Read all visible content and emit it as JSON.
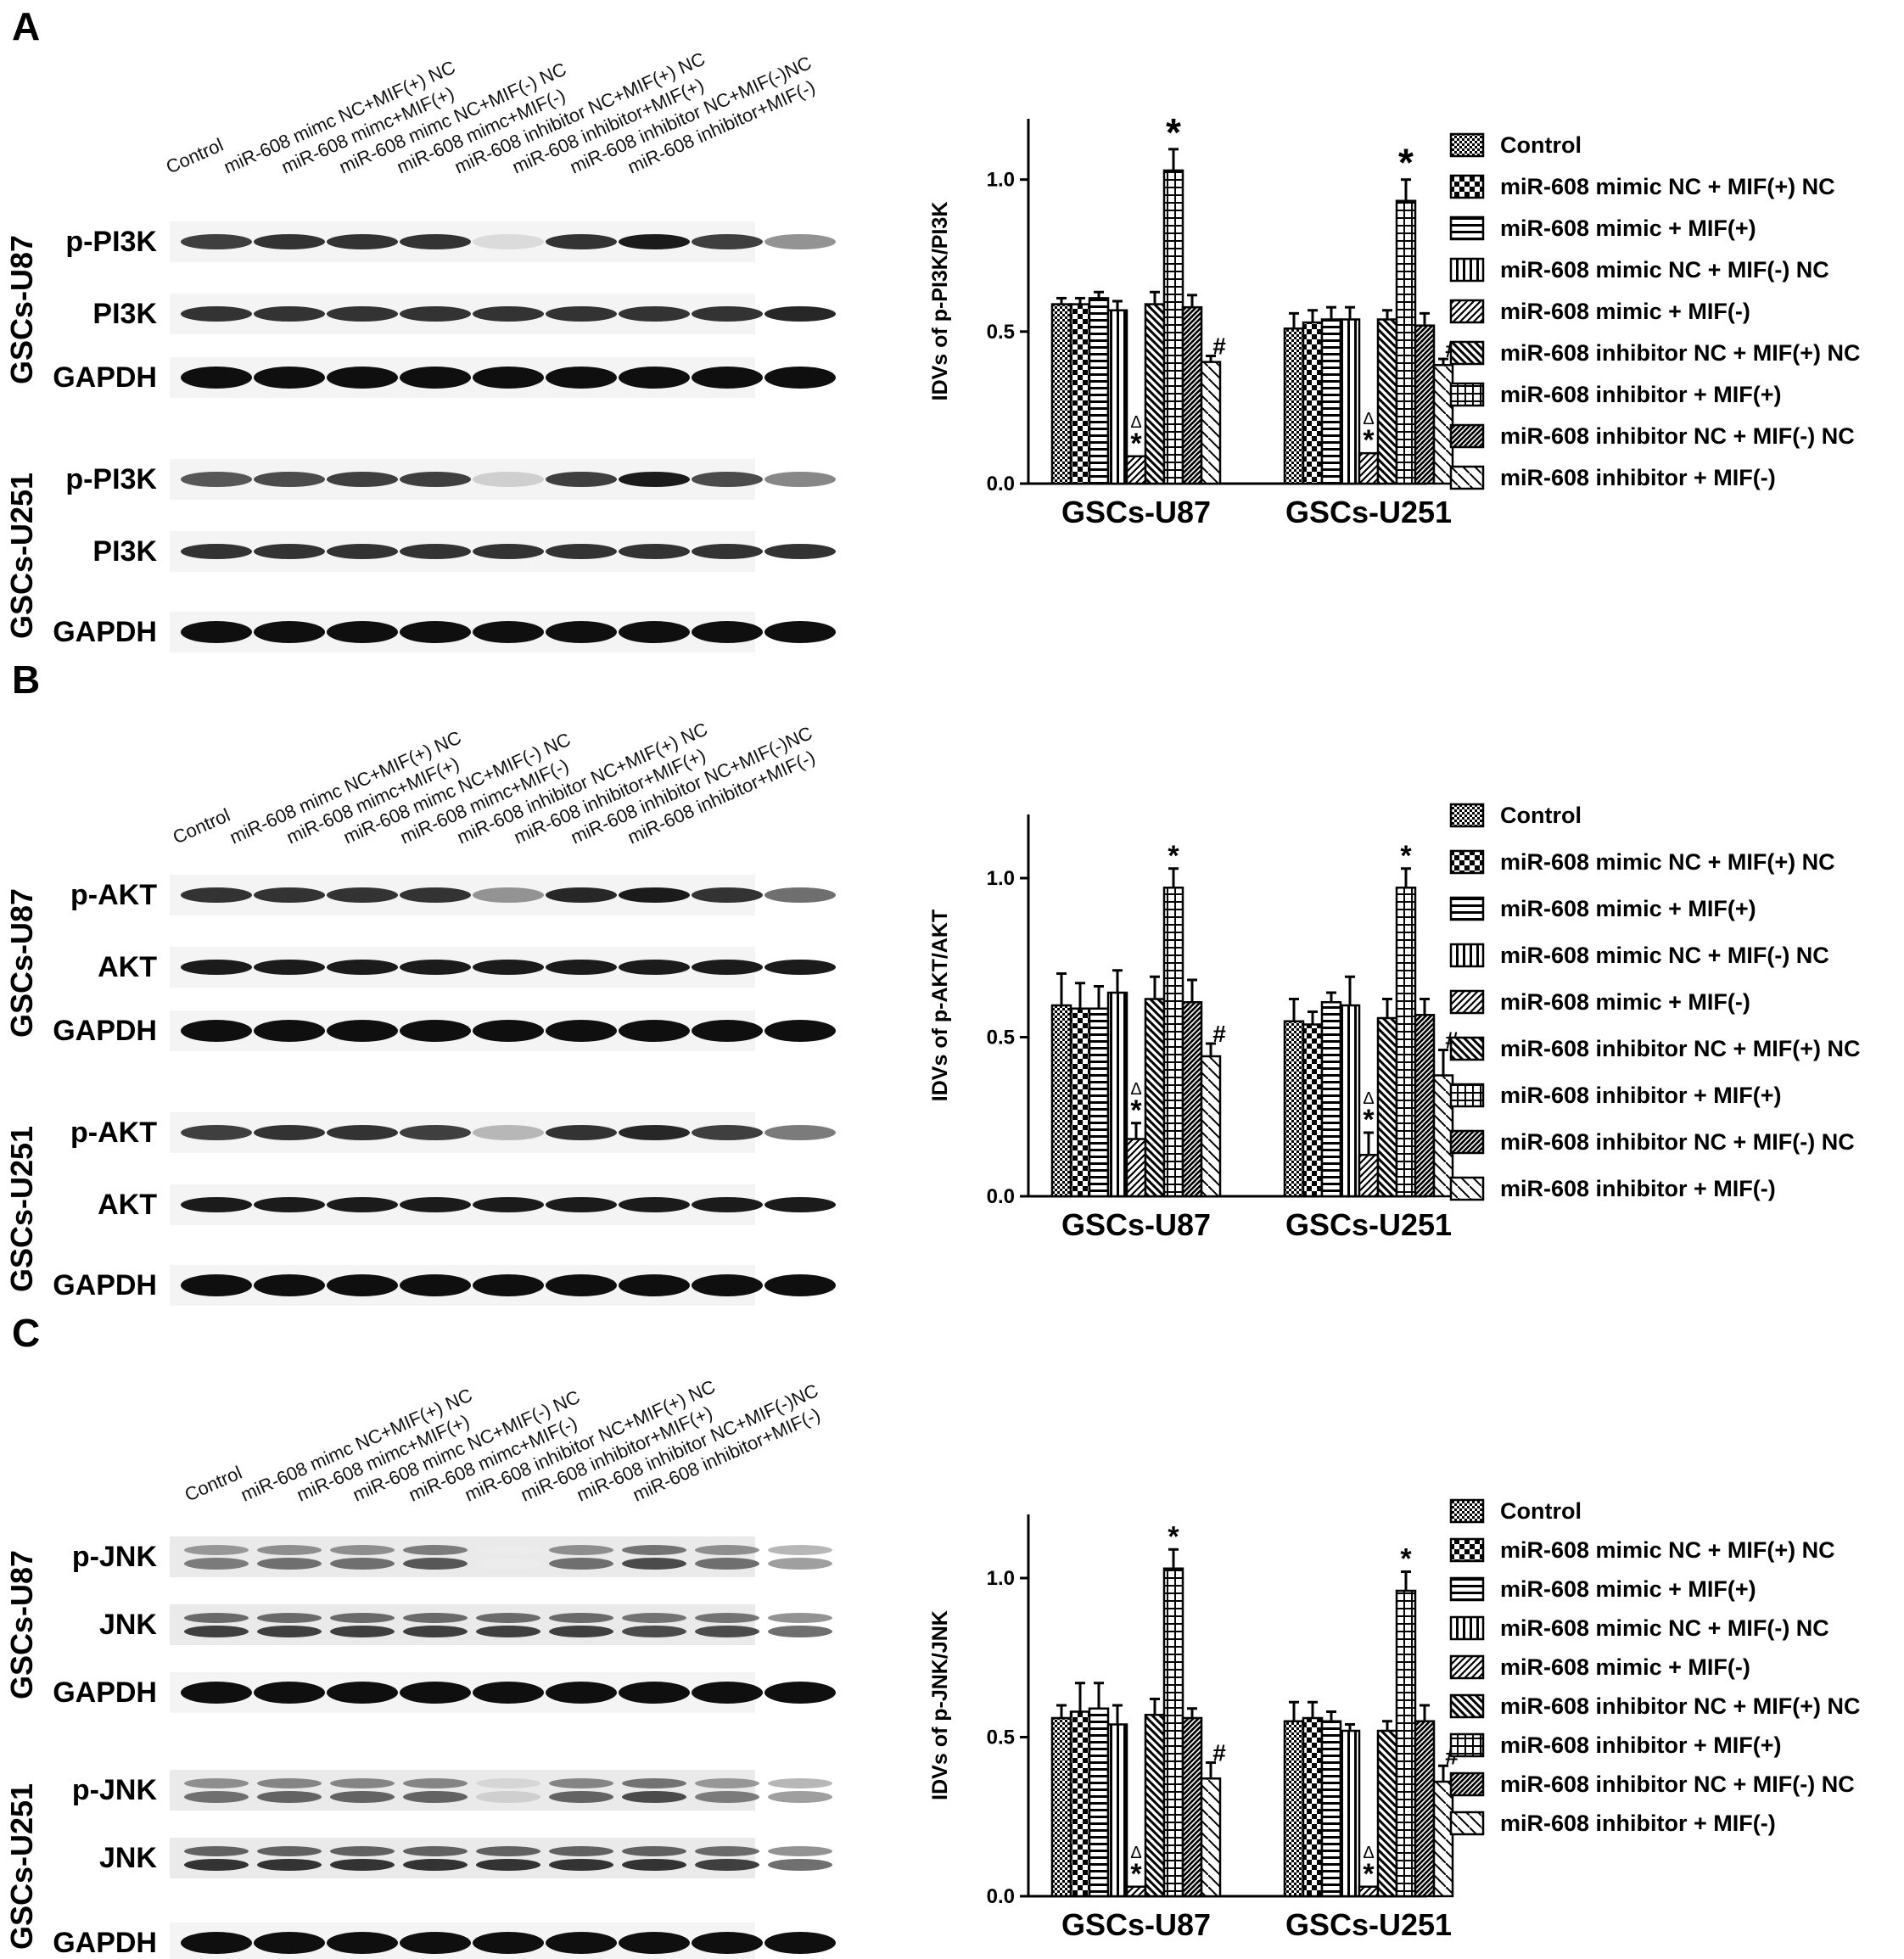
{
  "lane_labels": [
    "Control",
    "miR-608 mimc NC+MIF(+) NC",
    "miR-608 mimc+MIF(+)",
    "miR-608 mimc NC+MIF(-) NC",
    "miR-608 mimc+MIF(-)",
    "miR-608 inhibitor NC+MIF(+) NC",
    "miR-608 inhibitor+MIF(+)",
    "miR-608 inhibitor NC+MIF(-)NC",
    "miR-608 inhibitor+MIF(-)"
  ],
  "legend_labels": [
    "Control",
    "miR-608 mimic NC + MIF(+) NC",
    "miR-608 mimic + MIF(+)",
    "miR-608 mimic NC + MIF(-) NC",
    "miR-608 mimic + MIF(-)",
    "miR-608 inhibitor NC + MIF(+) NC",
    "miR-608 inhibitor + MIF(+)",
    "miR-608 inhibitor NC + MIF(-) NC",
    "miR-608 inhibitor + MIF(-)"
  ],
  "cell_groups": [
    "GSCs-U87",
    "GSCs-U251"
  ],
  "panels": [
    {
      "letter": "A",
      "rows_u87": [
        "p-PI3K",
        "PI3K",
        "GAPDH"
      ],
      "rows_u251": [
        "p-PI3K",
        "PI3K",
        "GAPDH"
      ]
    },
    {
      "letter": "B",
      "rows_u87": [
        "p-AKT",
        "AKT",
        "GAPDH"
      ],
      "rows_u251": [
        "p-AKT",
        "AKT",
        "GAPDH"
      ]
    },
    {
      "letter": "C",
      "rows_u87": [
        "p-JNK",
        "JNK",
        "GAPDH"
      ],
      "rows_u251": [
        "p-JNK",
        "JNK",
        "GAPDH"
      ]
    }
  ],
  "band_intensity": {
    "A": {
      "u87": [
        [
          0.8,
          0.85,
          0.85,
          0.85,
          0.15,
          0.85,
          0.95,
          0.8,
          0.45
        ],
        [
          0.85,
          0.85,
          0.85,
          0.85,
          0.85,
          0.85,
          0.85,
          0.85,
          0.9
        ],
        [
          1,
          1,
          1,
          1,
          1,
          1,
          1,
          1,
          1
        ]
      ],
      "u251": [
        [
          0.7,
          0.75,
          0.8,
          0.8,
          0.2,
          0.8,
          0.95,
          0.75,
          0.5
        ],
        [
          0.85,
          0.85,
          0.85,
          0.85,
          0.85,
          0.85,
          0.85,
          0.85,
          0.85
        ],
        [
          1,
          1,
          1,
          1,
          1,
          1,
          1,
          1,
          1
        ]
      ]
    },
    "B": {
      "u87": [
        [
          0.85,
          0.85,
          0.85,
          0.85,
          0.45,
          0.9,
          0.95,
          0.85,
          0.6
        ],
        [
          0.95,
          0.95,
          0.95,
          0.95,
          0.95,
          0.95,
          0.95,
          0.95,
          0.95
        ],
        [
          1,
          1,
          1,
          1,
          1,
          1,
          1,
          1,
          1
        ]
      ],
      "u251": [
        [
          0.8,
          0.85,
          0.85,
          0.8,
          0.3,
          0.85,
          0.9,
          0.8,
          0.55
        ],
        [
          0.95,
          0.95,
          0.95,
          0.95,
          0.95,
          0.95,
          0.95,
          0.95,
          0.95
        ],
        [
          1,
          1,
          1,
          1,
          1,
          1,
          1,
          1,
          1
        ]
      ]
    },
    "C": {
      "u87": [
        [
          0.55,
          0.6,
          0.6,
          0.7,
          0.08,
          0.6,
          0.75,
          0.6,
          0.4
        ],
        [
          0.8,
          0.8,
          0.8,
          0.8,
          0.8,
          0.8,
          0.75,
          0.75,
          0.6
        ],
        [
          1,
          1,
          1,
          1,
          1,
          1,
          1,
          1,
          1
        ]
      ],
      "u251": [
        [
          0.6,
          0.65,
          0.65,
          0.65,
          0.2,
          0.65,
          0.75,
          0.55,
          0.4
        ],
        [
          0.85,
          0.85,
          0.85,
          0.85,
          0.85,
          0.85,
          0.85,
          0.8,
          0.6
        ],
        [
          1,
          1,
          1,
          1,
          1,
          1,
          1,
          1,
          1
        ]
      ]
    }
  },
  "chart_data": [
    {
      "type": "bar",
      "panel": "A",
      "ylabel": "IDVs of p-PI3K/PI3K",
      "ylim": [
        0,
        1.2
      ],
      "yticks": [
        "0.0",
        "0.5",
        "1.0"
      ],
      "categories": [
        "GSCs-U87",
        "GSCs-U251"
      ],
      "series": [
        {
          "name": "Control",
          "values": [
            0.59,
            0.51
          ],
          "errors": [
            0.02,
            0.05
          ]
        },
        {
          "name": "miR-608 mimic NC + MIF(+) NC",
          "values": [
            0.59,
            0.53
          ],
          "errors": [
            0.02,
            0.04
          ]
        },
        {
          "name": "miR-608 mimic + MIF(+)",
          "values": [
            0.61,
            0.54
          ],
          "errors": [
            0.02,
            0.04
          ]
        },
        {
          "name": "miR-608 mimic NC + MIF(-) NC",
          "values": [
            0.57,
            0.54
          ],
          "errors": [
            0.03,
            0.04
          ]
        },
        {
          "name": "miR-608 mimic + MIF(-)",
          "values": [
            0.09,
            0.1
          ],
          "errors": [
            0.0,
            0.0
          ],
          "annotation": "Δ*"
        },
        {
          "name": "miR-608 inhibitor NC + MIF(+) NC",
          "values": [
            0.59,
            0.54
          ],
          "errors": [
            0.04,
            0.03
          ]
        },
        {
          "name": "miR-608 inhibitor + MIF(+)",
          "values": [
            1.03,
            0.93
          ],
          "errors": [
            0.07,
            0.07
          ],
          "annotation": "*"
        },
        {
          "name": "miR-608 inhibitor NC + MIF(-) NC",
          "values": [
            0.58,
            0.52
          ],
          "errors": [
            0.04,
            0.04
          ]
        },
        {
          "name": "miR-608 inhibitor + MIF(-)",
          "values": [
            0.4,
            0.39
          ],
          "errors": [
            0.02,
            0.02
          ],
          "annotation": "#"
        }
      ]
    },
    {
      "type": "bar",
      "panel": "B",
      "ylabel": "IDVs of p-AKT/AKT",
      "ylim": [
        0,
        1.2
      ],
      "yticks": [
        "0.0",
        "0.5",
        "1.0"
      ],
      "categories": [
        "GSCs-U87",
        "GSCs-U251"
      ],
      "series": [
        {
          "name": "Control",
          "values": [
            0.6,
            0.55
          ],
          "errors": [
            0.1,
            0.07
          ]
        },
        {
          "name": "miR-608 mimic NC + MIF(+) NC",
          "values": [
            0.59,
            0.54
          ],
          "errors": [
            0.08,
            0.04
          ]
        },
        {
          "name": "miR-608 mimic + MIF(+)",
          "values": [
            0.59,
            0.61
          ],
          "errors": [
            0.07,
            0.03
          ]
        },
        {
          "name": "miR-608 mimic NC + MIF(-) NC",
          "values": [
            0.64,
            0.6
          ],
          "errors": [
            0.07,
            0.09
          ]
        },
        {
          "name": "miR-608 mimic + MIF(-)",
          "values": [
            0.18,
            0.13
          ],
          "errors": [
            0.05,
            0.07
          ],
          "annotation": "Δ*"
        },
        {
          "name": "miR-608 inhibitor NC + MIF(+) NC",
          "values": [
            0.62,
            0.56
          ],
          "errors": [
            0.07,
            0.06
          ]
        },
        {
          "name": "miR-608 inhibitor + MIF(+)",
          "values": [
            0.97,
            0.97
          ],
          "errors": [
            0.06,
            0.06
          ],
          "annotation": "*"
        },
        {
          "name": "miR-608 inhibitor NC + MIF(-) NC",
          "values": [
            0.61,
            0.57
          ],
          "errors": [
            0.07,
            0.05
          ]
        },
        {
          "name": "miR-608 inhibitor + MIF(-)",
          "values": [
            0.44,
            0.38
          ],
          "errors": [
            0.04,
            0.08
          ],
          "annotation": "#"
        }
      ]
    },
    {
      "type": "bar",
      "panel": "C",
      "ylabel": "IDVs of p-JNK/JNK",
      "ylim": [
        0,
        1.2
      ],
      "yticks": [
        "0.0",
        "0.5",
        "1.0"
      ],
      "categories": [
        "GSCs-U87",
        "GSCs-U251"
      ],
      "series": [
        {
          "name": "Control",
          "values": [
            0.56,
            0.55
          ],
          "errors": [
            0.04,
            0.06
          ]
        },
        {
          "name": "miR-608 mimic NC + MIF(+) NC",
          "values": [
            0.58,
            0.56
          ],
          "errors": [
            0.09,
            0.05
          ]
        },
        {
          "name": "miR-608 mimic + MIF(+)",
          "values": [
            0.59,
            0.55
          ],
          "errors": [
            0.08,
            0.03
          ]
        },
        {
          "name": "miR-608 mimic NC + MIF(-) NC",
          "values": [
            0.54,
            0.52
          ],
          "errors": [
            0.06,
            0.02
          ]
        },
        {
          "name": "miR-608 mimic + MIF(-)",
          "values": [
            0.03,
            0.03
          ],
          "errors": [
            0.0,
            0.0
          ],
          "annotation": "Δ*"
        },
        {
          "name": "miR-608 inhibitor NC + MIF(+) NC",
          "values": [
            0.57,
            0.52
          ],
          "errors": [
            0.05,
            0.03
          ]
        },
        {
          "name": "miR-608 inhibitor + MIF(+)",
          "values": [
            1.03,
            0.96
          ],
          "errors": [
            0.06,
            0.06
          ],
          "annotation": "*"
        },
        {
          "name": "miR-608 inhibitor NC + MIF(-) NC",
          "values": [
            0.56,
            0.55
          ],
          "errors": [
            0.03,
            0.05
          ]
        },
        {
          "name": "miR-608 inhibitor + MIF(-)",
          "values": [
            0.37,
            0.36
          ],
          "errors": [
            0.05,
            0.05
          ],
          "annotation": "#"
        }
      ]
    }
  ]
}
